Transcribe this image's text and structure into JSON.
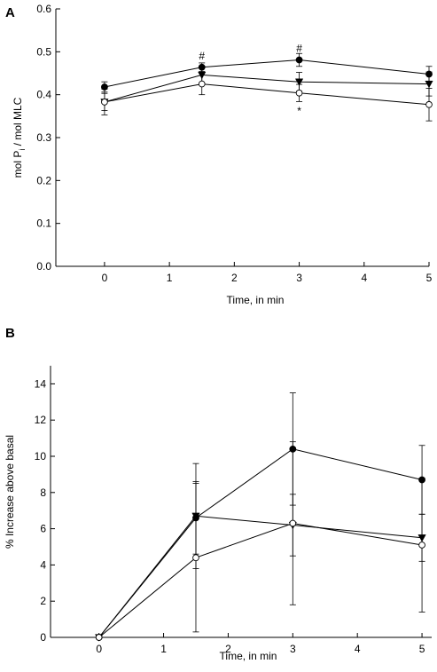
{
  "chart_data": [
    {
      "type": "line",
      "panel_label": "A",
      "title": "",
      "xlabel": "Time, in min",
      "ylabel_main": "mol P",
      "ylabel_sub": "i",
      "ylabel_rest": " / mol MLC",
      "xlim": [
        -0.75,
        5
      ],
      "ylim": [
        0,
        0.6
      ],
      "xticks": [
        0,
        1,
        2,
        3,
        4,
        5
      ],
      "xtick_labels": [
        "0",
        "1",
        "2",
        "3",
        "4",
        "5"
      ],
      "yticks": [
        0,
        0.1,
        0.2,
        0.3,
        0.4,
        0.5,
        0.6
      ],
      "ytick_labels": [
        "0.0",
        "0.1",
        "0.2",
        "0.3",
        "0.4",
        "0.5",
        "0.6"
      ],
      "grid": false,
      "legend": "none",
      "series": [
        {
          "marker": "filled-circle",
          "x": [
            0,
            1.5,
            3,
            5
          ],
          "y": [
            0.418,
            0.464,
            0.481,
            0.448
          ],
          "err": [
            0.012,
            0.01,
            0.015,
            0.018
          ]
        },
        {
          "marker": "filled-triangle-down",
          "x": [
            0,
            1.5,
            3,
            5
          ],
          "y": [
            0.383,
            0.446,
            0.43,
            0.425
          ],
          "err": [
            0.02,
            0.02,
            0.022,
            0.028
          ]
        },
        {
          "marker": "open-circle",
          "x": [
            0,
            1.5,
            3,
            5
          ],
          "y": [
            0.383,
            0.425,
            0.404,
            0.377
          ],
          "err": [
            0.03,
            0.025,
            0.02,
            0.038
          ]
        }
      ],
      "annotations": [
        {
          "text": "#",
          "x": 1.5,
          "y": 0.49
        },
        {
          "text": "#",
          "x": 3,
          "y": 0.508
        },
        {
          "text": "*",
          "x": 3,
          "y": 0.362
        }
      ]
    },
    {
      "type": "line",
      "panel_label": "B",
      "title": "",
      "xlabel": "Time, in min",
      "ylabel": "% Increase above basal",
      "xlim": [
        -0.75,
        5.15
      ],
      "ylim": [
        0,
        15
      ],
      "xticks": [
        0,
        1,
        2,
        3,
        4,
        5
      ],
      "xtick_labels": [
        "0",
        "1",
        "2",
        "3",
        "4",
        "5"
      ],
      "yticks": [
        0,
        2,
        4,
        6,
        8,
        10,
        12,
        14
      ],
      "ytick_labels": [
        "0",
        "2",
        "4",
        "6",
        "8",
        "10",
        "12",
        "14"
      ],
      "grid": false,
      "legend": "none",
      "series": [
        {
          "marker": "filled-circle",
          "x": [
            0,
            1.5,
            3,
            5
          ],
          "y": [
            0,
            6.6,
            10.4,
            8.7
          ],
          "err": [
            0,
            2.0,
            3.1,
            1.9
          ]
        },
        {
          "marker": "filled-triangle-down",
          "x": [
            0,
            1.5,
            3,
            5
          ],
          "y": [
            0,
            6.7,
            6.2,
            5.5
          ],
          "err": [
            0,
            2.9,
            1.7,
            1.3
          ]
        },
        {
          "marker": "open-circle",
          "x": [
            0,
            1.5,
            3,
            5
          ],
          "y": [
            0,
            4.4,
            6.3,
            5.1
          ],
          "err": [
            0,
            4.1,
            4.5,
            3.7
          ]
        }
      ],
      "annotations": []
    }
  ]
}
